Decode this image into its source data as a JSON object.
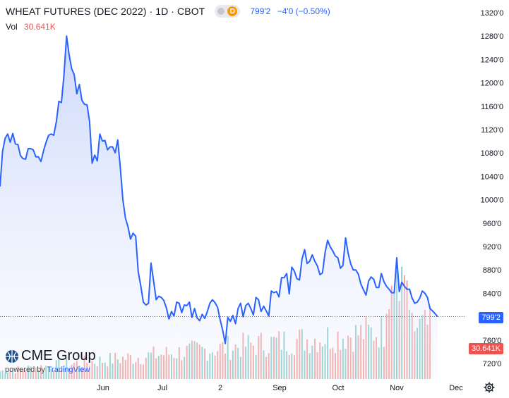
{
  "header": {
    "title": "WHEAT FUTURES (DEC 2022) · 1D · CBOT",
    "toggle_letter": "D",
    "price": "799'2",
    "change": "−4'0 (−0.50%)"
  },
  "volume": {
    "label": "Vol",
    "value": "30.641K"
  },
  "logo": {
    "brand": "CME Group",
    "powered_by": "powered by",
    "provider": "TradingView"
  },
  "price_tag": "799'2",
  "volume_tag": "30.641K",
  "colors": {
    "line": "#2962ff",
    "area_top": "#c7d4fb",
    "vol_up": "#26a69a",
    "vol_down": "#ef5350",
    "tag_price": "#2962ff",
    "tag_volume": "#ef5350"
  },
  "chart_data": {
    "type": "area",
    "y_ticks": [
      "1320'0",
      "1280'0",
      "1240'0",
      "1200'0",
      "1160'0",
      "1120'0",
      "1080'0",
      "1040'0",
      "1000'0",
      "960'0",
      "920'0",
      "880'0",
      "840'0",
      "800'0",
      "760'0",
      "720'0"
    ],
    "x_ticks": [
      "Jun",
      "Jul",
      "2",
      "Sep",
      "Oct",
      "Nov",
      "Dec"
    ],
    "ylim": [
      712,
      1330
    ],
    "price": [
      1022,
      1082,
      1105,
      1112,
      1098,
      1113,
      1095,
      1094,
      1075,
      1070,
      1069,
      1087,
      1087,
      1085,
      1073,
      1073,
      1065,
      1083,
      1098,
      1110,
      1112,
      1110,
      1133,
      1168,
      1166,
      1213,
      1280,
      1248,
      1224,
      1214,
      1181,
      1197,
      1170,
      1163,
      1162,
      1133,
      1062,
      1076,
      1066,
      1112,
      1100,
      1101,
      1085,
      1090,
      1090,
      1080,
      1102,
      1055,
      1000,
      968,
      953,
      932,
      942,
      937,
      876,
      852,
      824,
      819,
      822,
      891,
      861,
      828,
      834,
      832,
      827,
      814,
      795,
      808,
      800,
      824,
      822,
      806,
      819,
      818,
      824,
      798,
      813,
      797,
      792,
      803,
      796,
      808,
      822,
      828,
      823,
      815,
      794,
      776,
      753,
      798,
      791,
      801,
      787,
      813,
      822,
      799,
      818,
      822,
      813,
      802,
      832,
      828,
      808,
      817,
      809,
      800,
      843,
      840,
      842,
      833,
      866,
      866,
      873,
      838,
      884,
      877,
      864,
      862,
      898,
      914,
      890,
      894,
      905,
      894,
      886,
      871,
      874,
      909,
      930,
      919,
      912,
      903,
      900,
      882,
      887,
      934,
      908,
      890,
      879,
      879,
      872,
      855,
      845,
      836,
      860,
      867,
      863,
      849,
      849,
      873,
      859,
      851,
      846,
      840,
      840,
      900,
      842,
      858,
      851,
      846,
      846,
      831,
      822,
      824,
      831,
      843,
      839,
      832,
      813,
      809,
      804,
      799
    ]
  }
}
